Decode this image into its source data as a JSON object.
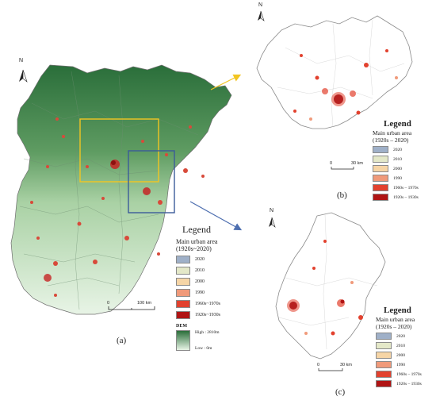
{
  "panels": {
    "a": {
      "label": "(a)"
    },
    "b": {
      "label": "(b)"
    },
    "c": {
      "label": "(c)"
    }
  },
  "north_label": "N",
  "legend_main": {
    "title": "Legend",
    "subtitle_line1": "Main urban area",
    "subtitle_line2": "(1920s~2020)",
    "items": [
      {
        "label": "2020",
        "color": "#9fb0c8"
      },
      {
        "label": "2010",
        "color": "#e4e8c8"
      },
      {
        "label": "2000",
        "color": "#f6d5a6"
      },
      {
        "label": "1990",
        "color": "#f09a7a"
      },
      {
        "label": "1960s~1970s",
        "color": "#e2412e"
      },
      {
        "label": "1920s~1930s",
        "color": "#b01414"
      }
    ],
    "dem_title": "DEM",
    "dem_high": "High : 2810m",
    "dem_low": "Low : 0m",
    "dem_high_color": "#2a6e3a",
    "dem_low_color": "#e8f4e6"
  },
  "legend_b": {
    "title": "Legend",
    "subtitle_line1": "Main urban area",
    "subtitle_line2": "(1920s – 2020)",
    "items": [
      {
        "label": "2020",
        "color": "#9fb0c8"
      },
      {
        "label": "2010",
        "color": "#e4e8c8"
      },
      {
        "label": "2000",
        "color": "#f6d5a6"
      },
      {
        "label": "1990",
        "color": "#f09a7a"
      },
      {
        "label": "1960s – 1970s",
        "color": "#e2412e"
      },
      {
        "label": "1920s – 1930s",
        "color": "#b01414"
      }
    ]
  },
  "legend_c": {
    "title": "Legend",
    "subtitle_line1": "Main urban area",
    "subtitle_line2": "(1920s – 2020)",
    "items": [
      {
        "label": "2020",
        "color": "#9fb0c8"
      },
      {
        "label": "2010",
        "color": "#e4e8c8"
      },
      {
        "label": "2000",
        "color": "#f6d5a6"
      },
      {
        "label": "1990",
        "color": "#f09a7a"
      },
      {
        "label": "1960s – 1970s",
        "color": "#e2412e"
      },
      {
        "label": "1920s – 1930s",
        "color": "#b01414"
      }
    ]
  },
  "scalebars": {
    "a": {
      "zero": "0",
      "dist": "100 km"
    },
    "b": {
      "zero": "0",
      "dist": "30 km"
    },
    "c": {
      "zero": "0",
      "dist": "30 km"
    }
  },
  "colors": {
    "yellow_box": "#f2c521",
    "blue_box": "#3b5b9a",
    "arrow_yellow": "#f2c521",
    "arrow_blue": "#4e6fb0"
  }
}
